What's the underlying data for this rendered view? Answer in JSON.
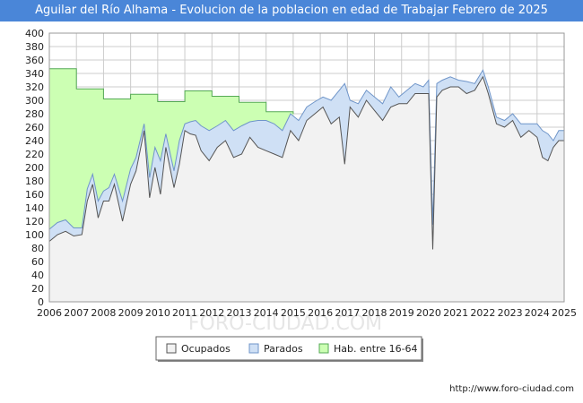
{
  "header": {
    "title": "Aguilar del Río Alhama - Evolucion de la poblacion en edad de Trabajar Febrero de 2025"
  },
  "footer": {
    "source": "http://www.foro-ciudad.com"
  },
  "watermark": "FORO-CIUDAD.COM",
  "colors": {
    "ocupados_fill": "#f2f2f2",
    "ocupados_line": "#555555",
    "parados_fill": "#cfe0f5",
    "parados_line": "#6f95c9",
    "hab_fill": "#ccffb3",
    "hab_line": "#55aa55",
    "grid": "#cccccc",
    "title_bg": "#4a86d8"
  },
  "chart_data": {
    "type": "area",
    "title": "Aguilar del Río Alhama - Evolucion de la poblacion en edad de Trabajar Febrero de 2025",
    "xlabel": "",
    "ylabel": "",
    "xlim": [
      2006,
      2025
    ],
    "ylim": [
      0,
      400
    ],
    "grid": true,
    "x_ticks": [
      2006,
      2007,
      2008,
      2009,
      2010,
      2011,
      2012,
      2013,
      2014,
      2015,
      2016,
      2017,
      2018,
      2019,
      2020,
      2021,
      2022,
      2023,
      2024,
      2025
    ],
    "y_ticks": [
      0,
      20,
      40,
      60,
      80,
      100,
      120,
      140,
      160,
      180,
      200,
      220,
      240,
      260,
      280,
      300,
      320,
      340,
      360,
      380,
      400
    ],
    "legend": [
      "Ocupados",
      "Parados",
      "Hab. entre 16-64"
    ],
    "legend_position": "bottom-center",
    "series": [
      {
        "name": "Hab. entre 16-64",
        "x": [
          2006.0,
          2007.0,
          2007.0,
          2008.0,
          2008.0,
          2009.0,
          2009.0,
          2010.0,
          2010.0,
          2011.0,
          2011.0,
          2012.0,
          2012.0,
          2013.0,
          2013.0,
          2014.0,
          2014.0,
          2015.0,
          2015.0
        ],
        "values": [
          347,
          347,
          317,
          317,
          302,
          302,
          309,
          309,
          298,
          298,
          314,
          314,
          306,
          306,
          297,
          297,
          283,
          283,
          280
        ]
      },
      {
        "name": "Parados",
        "x": [
          2006.0,
          2006.3,
          2006.6,
          2006.9,
          2007.2,
          2007.4,
          2007.6,
          2007.8,
          2008.0,
          2008.2,
          2008.4,
          2008.7,
          2009.0,
          2009.2,
          2009.5,
          2009.7,
          2009.9,
          2010.1,
          2010.3,
          2010.6,
          2010.8,
          2011.0,
          2011.2,
          2011.4,
          2011.6,
          2011.9,
          2012.2,
          2012.5,
          2012.8,
          2013.1,
          2013.4,
          2013.7,
          2014.0,
          2014.3,
          2014.6,
          2014.9,
          2015.2,
          2015.5,
          2015.8,
          2016.1,
          2016.4,
          2016.7,
          2016.9,
          2017.1,
          2017.4,
          2017.7,
          2018.0,
          2018.3,
          2018.6,
          2018.9,
          2019.2,
          2019.5,
          2019.8,
          2020.0,
          2020.15,
          2020.3,
          2020.5,
          2020.8,
          2021.1,
          2021.4,
          2021.7,
          2022.0,
          2022.2,
          2022.5,
          2022.8,
          2023.1,
          2023.4,
          2023.7,
          2024.0,
          2024.2,
          2024.4,
          2024.6,
          2024.8,
          2025.0
        ],
        "values": [
          108,
          118,
          122,
          110,
          110,
          168,
          190,
          150,
          165,
          170,
          190,
          150,
          198,
          215,
          265,
          185,
          230,
          210,
          250,
          195,
          240,
          265,
          268,
          270,
          262,
          255,
          262,
          270,
          255,
          262,
          268,
          270,
          270,
          265,
          255,
          280,
          270,
          290,
          298,
          305,
          300,
          315,
          325,
          300,
          295,
          315,
          305,
          295,
          320,
          305,
          315,
          325,
          320,
          330,
          115,
          325,
          330,
          335,
          330,
          328,
          325,
          345,
          320,
          275,
          270,
          280,
          265,
          265,
          265,
          255,
          250,
          240,
          255,
          255
        ]
      },
      {
        "name": "Ocupados",
        "x": [
          2006.0,
          2006.3,
          2006.6,
          2006.9,
          2007.2,
          2007.4,
          2007.6,
          2007.8,
          2008.0,
          2008.2,
          2008.4,
          2008.7,
          2009.0,
          2009.2,
          2009.5,
          2009.7,
          2009.9,
          2010.1,
          2010.3,
          2010.6,
          2010.8,
          2011.0,
          2011.2,
          2011.4,
          2011.6,
          2011.9,
          2012.2,
          2012.5,
          2012.8,
          2013.1,
          2013.4,
          2013.7,
          2014.0,
          2014.3,
          2014.6,
          2014.9,
          2015.2,
          2015.5,
          2015.8,
          2016.1,
          2016.4,
          2016.7,
          2016.9,
          2017.1,
          2017.4,
          2017.7,
          2018.0,
          2018.3,
          2018.6,
          2018.9,
          2019.2,
          2019.5,
          2019.8,
          2020.0,
          2020.15,
          2020.3,
          2020.5,
          2020.8,
          2021.1,
          2021.4,
          2021.7,
          2022.0,
          2022.2,
          2022.5,
          2022.8,
          2023.1,
          2023.4,
          2023.7,
          2024.0,
          2024.2,
          2024.4,
          2024.6,
          2024.8,
          2025.0
        ],
        "values": [
          90,
          100,
          105,
          98,
          100,
          150,
          175,
          125,
          150,
          150,
          175,
          120,
          175,
          195,
          255,
          155,
          200,
          160,
          230,
          170,
          205,
          255,
          250,
          248,
          225,
          210,
          230,
          240,
          215,
          220,
          245,
          230,
          225,
          220,
          215,
          255,
          240,
          270,
          280,
          290,
          265,
          275,
          205,
          290,
          275,
          300,
          285,
          270,
          290,
          295,
          295,
          310,
          310,
          310,
          78,
          305,
          315,
          320,
          320,
          310,
          315,
          335,
          310,
          265,
          260,
          270,
          245,
          255,
          245,
          215,
          210,
          230,
          240,
          240
        ]
      }
    ]
  }
}
